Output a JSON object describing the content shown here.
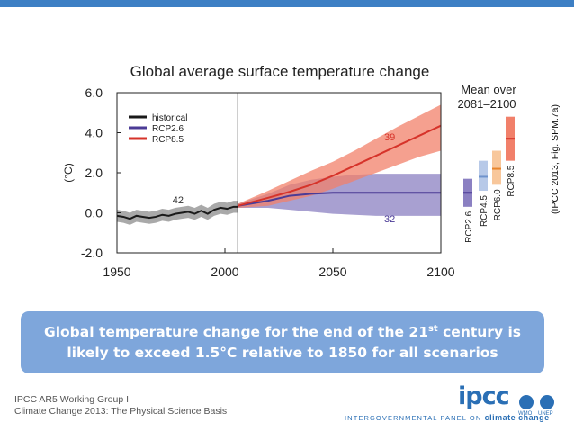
{
  "chart_data": {
    "type": "line",
    "title": "Global average surface temperature change",
    "ylabel": "(°C)",
    "xlim": [
      1950,
      2100
    ],
    "ylim": [
      -2.0,
      6.0
    ],
    "xticks": [
      1950,
      2000,
      2050,
      2100
    ],
    "yticks": [
      6.0,
      4.0,
      2.0,
      0.0,
      -2.0
    ],
    "ytick_labels": [
      "6.0",
      "4.0",
      "2.0",
      "0.0",
      "-2.0"
    ],
    "divider_year": 2006,
    "legend": [
      "historical",
      "RCP2.6",
      "RCP8.5"
    ],
    "series": [
      {
        "name": "historical",
        "color": "#1a1a1a",
        "band_color": "#8c8c8c",
        "x": [
          1950,
          1953,
          1956,
          1959,
          1962,
          1965,
          1968,
          1971,
          1974,
          1977,
          1980,
          1983,
          1986,
          1989,
          1992,
          1995,
          1998,
          2001,
          2004,
          2006
        ],
        "y": [
          -0.15,
          -0.2,
          -0.3,
          -0.15,
          -0.2,
          -0.25,
          -0.2,
          -0.1,
          -0.15,
          -0.05,
          0.0,
          0.05,
          -0.05,
          0.1,
          -0.05,
          0.15,
          0.25,
          0.2,
          0.3,
          0.3
        ],
        "band": 0.3,
        "count_label": "42"
      },
      {
        "name": "RCP2.6",
        "color": "#4b3b96",
        "band_color": "#8b80c2",
        "x": [
          2006,
          2020,
          2030,
          2040,
          2050,
          2060,
          2070,
          2080,
          2090,
          2100
        ],
        "y": [
          0.35,
          0.6,
          0.85,
          0.95,
          1.0,
          1.0,
          1.0,
          1.0,
          1.0,
          1.0
        ],
        "lower": [
          0.25,
          0.25,
          0.15,
          0.05,
          -0.05,
          -0.1,
          -0.15,
          -0.15,
          -0.15,
          -0.15
        ],
        "upper": [
          0.45,
          0.95,
          1.4,
          1.65,
          1.8,
          1.9,
          1.95,
          1.95,
          1.95,
          1.95
        ],
        "count_label": "32"
      },
      {
        "name": "RCP8.5",
        "color": "#d6332a",
        "band_color": "#f1806a",
        "x": [
          2006,
          2020,
          2030,
          2040,
          2050,
          2060,
          2070,
          2080,
          2090,
          2100
        ],
        "y": [
          0.35,
          0.75,
          1.05,
          1.4,
          1.85,
          2.35,
          2.85,
          3.35,
          3.85,
          4.35
        ],
        "lower": [
          0.25,
          0.35,
          0.6,
          0.85,
          1.2,
          1.6,
          2.0,
          2.4,
          2.8,
          3.1
        ],
        "upper": [
          0.45,
          1.1,
          1.6,
          2.1,
          2.55,
          3.1,
          3.7,
          4.3,
          4.85,
          5.4
        ],
        "count_label": "39"
      }
    ],
    "side_panel": {
      "title_line1": "Mean over",
      "title_line2": "2081–2100",
      "bars": [
        {
          "label": "RCP2.6",
          "low": 0.3,
          "high": 1.7,
          "mean": 1.0,
          "color": "#8b80c2",
          "mean_color": "#4b3b96"
        },
        {
          "label": "RCP4.5",
          "low": 1.1,
          "high": 2.6,
          "mean": 1.8,
          "color": "#b7c9e8",
          "mean_color": "#6f93cc"
        },
        {
          "label": "RCP6.0",
          "low": 1.4,
          "high": 3.1,
          "mean": 2.2,
          "color": "#f8c79b",
          "mean_color": "#e8852c"
        },
        {
          "label": "RCP8.5",
          "low": 2.6,
          "high": 4.8,
          "mean": 3.7,
          "color": "#f1806a",
          "mean_color": "#d6332a"
        }
      ]
    }
  },
  "source": "(IPCC 2013, Fig. SPM.7a)",
  "caption": {
    "line1_before": "Global temperature change for the end of the 21",
    "line1_sup": "st",
    "line1_after": " century is",
    "line2": "likely to exceed 1.5°C relative to 1850 for all scenarios"
  },
  "footer": {
    "line1": "IPCC AR5 Working Group I",
    "line2": "Climate Change 2013: The Physical Science Basis",
    "logo": "ipcc",
    "logo_sub": "INTERGOVERNMENTAL PANEL ON",
    "logo_sub_bold": "climate change",
    "wmo": "WMO",
    "unep": "UNEP"
  },
  "colors": {
    "accent": "#3d7fc4",
    "caption_bg": "#7ea6db"
  }
}
